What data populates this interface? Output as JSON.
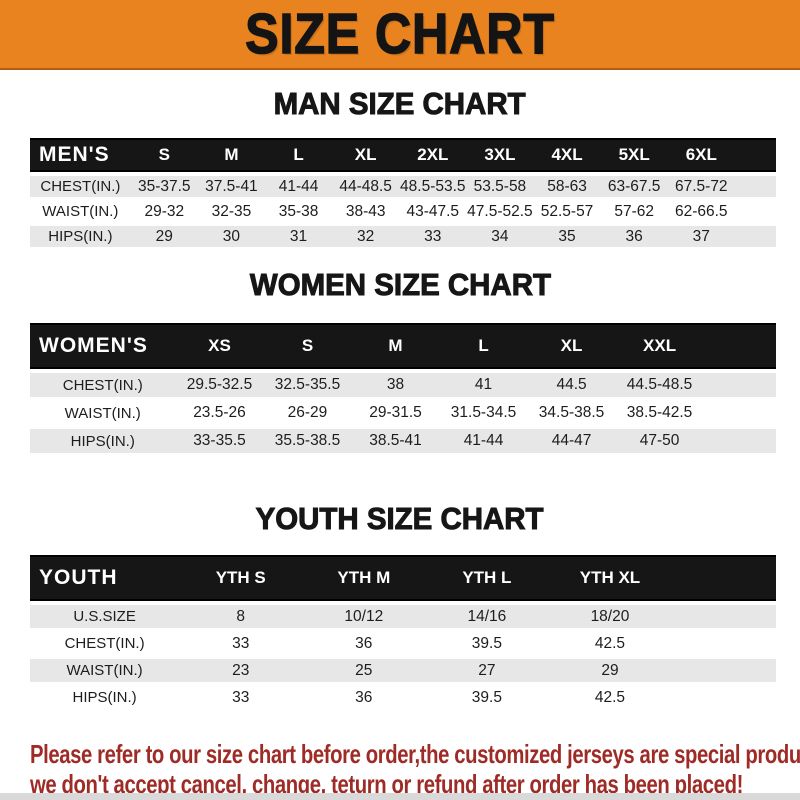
{
  "banner": {
    "title": "SIZE CHART",
    "bg": "#E8831F",
    "text_color": "#141414"
  },
  "sections": [
    {
      "id": "men",
      "heading": "MAN SIZE CHART",
      "table": {
        "label": "MEN'S",
        "columns": [
          "S",
          "M",
          "L",
          "XL",
          "2XL",
          "3XL",
          "4XL",
          "5XL",
          "6XL"
        ],
        "rows": [
          {
            "label": "CHEST(IN.)",
            "values": [
              "35-37.5",
              "37.5-41",
              "41-44",
              "44-48.5",
              "48.5-53.5",
              "53.5-58",
              "58-63",
              "63-67.5",
              "67.5-72"
            ]
          },
          {
            "label": "WAIST(IN.)",
            "values": [
              "29-32",
              "32-35",
              "35-38",
              "38-43",
              "43-47.5",
              "47.5-52.5",
              "52.5-57",
              "57-62",
              "62-66.5"
            ]
          },
          {
            "label": "HIPS(IN.)",
            "values": [
              "29",
              "30",
              "31",
              "32",
              "33",
              "34",
              "35",
              "36",
              "37"
            ]
          }
        ]
      }
    },
    {
      "id": "women",
      "heading": "WOMEN SIZE CHART",
      "table": {
        "label": "WOMEN'S",
        "columns": [
          "XS",
          "S",
          "M",
          "L",
          "XL",
          "XXL"
        ],
        "rows": [
          {
            "label": "CHEST(IN.)",
            "values": [
              "29.5-32.5",
              "32.5-35.5",
              "38",
              "41",
              "44.5",
              "44.5-48.5"
            ]
          },
          {
            "label": "WAIST(IN.)",
            "values": [
              "23.5-26",
              "26-29",
              "29-31.5",
              "31.5-34.5",
              "34.5-38.5",
              "38.5-42.5"
            ]
          },
          {
            "label": "HIPS(IN.)",
            "values": [
              "33-35.5",
              "35.5-38.5",
              "38.5-41",
              "41-44",
              "44-47",
              "47-50"
            ]
          }
        ]
      }
    },
    {
      "id": "youth",
      "heading": "YOUTH SIZE CHART",
      "table": {
        "label": "YOUTH",
        "columns": [
          "YTH S",
          "YTH M",
          "YTH L",
          "YTH XL"
        ],
        "rows": [
          {
            "label": "U.S.SIZE",
            "values": [
              "8",
              "10/12",
              "14/16",
              "18/20"
            ]
          },
          {
            "label": "CHEST(IN.)",
            "values": [
              "33",
              "36",
              "39.5",
              "42.5"
            ]
          },
          {
            "label": "WAIST(IN.)",
            "values": [
              "23",
              "25",
              "27",
              "29"
            ]
          },
          {
            "label": "HIPS(IN.)",
            "values": [
              "33",
              "36",
              "39.5",
              "42.5"
            ]
          }
        ]
      }
    }
  ],
  "disclaimer": {
    "lines": [
      "Please refer to our size chart before order,the customized jerseys are special products,",
      "we don't accept cancel, change, teturn or refund after order has been placed!"
    ],
    "color": "#9E2B26"
  },
  "style_colors": {
    "header_row_bg": "#161616",
    "shaded_row_bg": "#E7E7E7",
    "bottom_strip": "#D9D9D9"
  }
}
